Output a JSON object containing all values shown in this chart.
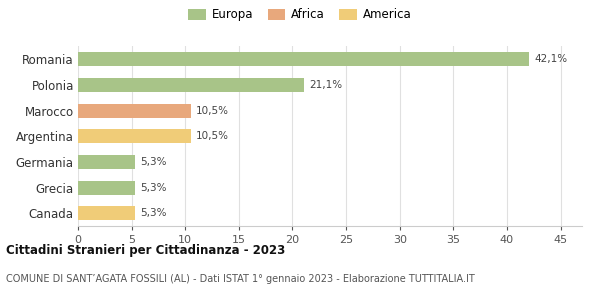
{
  "categories": [
    "Romania",
    "Polonia",
    "Marocco",
    "Argentina",
    "Germania",
    "Grecia",
    "Canada"
  ],
  "values": [
    42.1,
    21.1,
    10.5,
    10.5,
    5.3,
    5.3,
    5.3
  ],
  "labels": [
    "42,1%",
    "21,1%",
    "10,5%",
    "10,5%",
    "5,3%",
    "5,3%",
    "5,3%"
  ],
  "colors": [
    "#a8c488",
    "#a8c488",
    "#e8a87c",
    "#f0cc78",
    "#a8c488",
    "#a8c488",
    "#f0cc78"
  ],
  "legend": [
    {
      "label": "Europa",
      "color": "#a8c488"
    },
    {
      "label": "Africa",
      "color": "#e8a87c"
    },
    {
      "label": "America",
      "color": "#f0cc78"
    }
  ],
  "xlim": [
    0,
    47
  ],
  "xticks": [
    0,
    5,
    10,
    15,
    20,
    25,
    30,
    35,
    40,
    45
  ],
  "title": "Cittadini Stranieri per Cittadinanza - 2023",
  "subtitle": "COMUNE DI SANT’AGATA FOSSILI (AL) - Dati ISTAT 1° gennaio 2023 - Elaborazione TUTTITALIA.IT",
  "background_color": "#ffffff",
  "bar_height": 0.55,
  "grid_color": "#e0e0e0"
}
